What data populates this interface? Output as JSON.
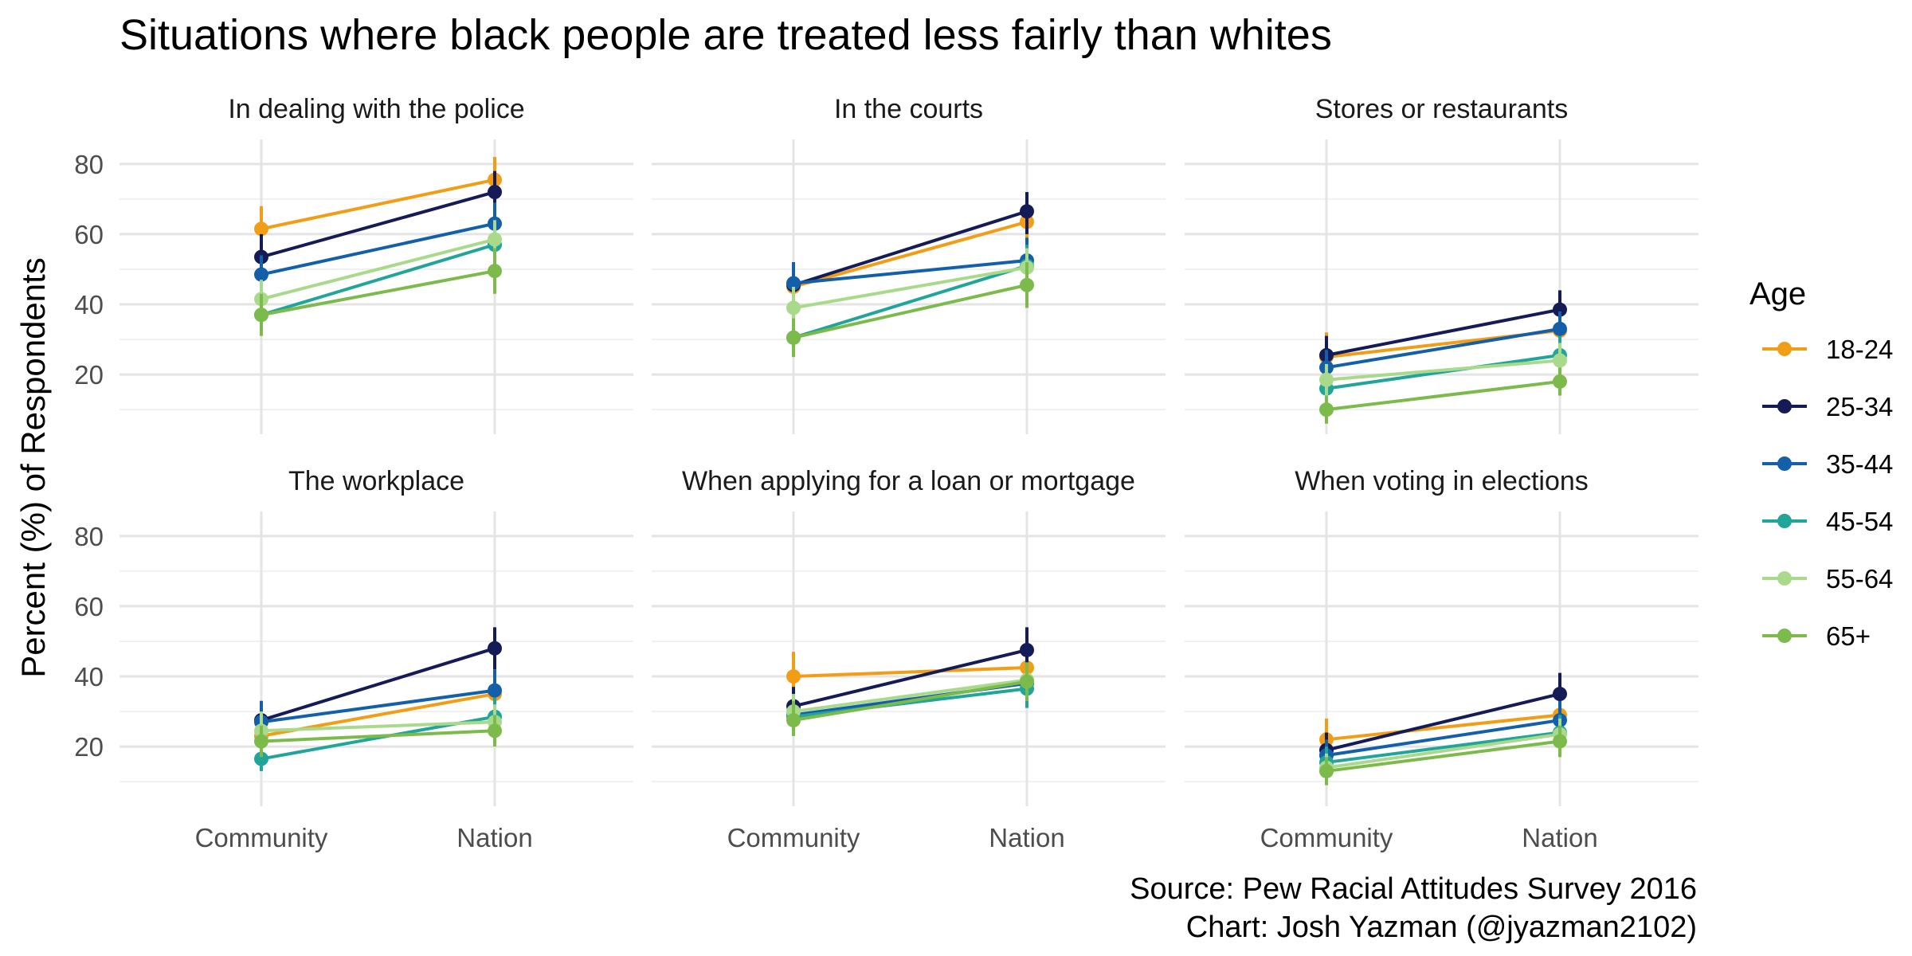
{
  "chart_data": {
    "type": "line",
    "title": "Situations where black people are treated less fairly than whites",
    "ylabel": "Percent (%) of Respondents",
    "xlabel": "",
    "categories": [
      "Community",
      "Nation"
    ],
    "ylim": [
      3,
      87
    ],
    "y_ticks": [
      20,
      40,
      60,
      80
    ],
    "grid": true,
    "legend": {
      "title": "Age",
      "position": "right",
      "items": [
        "18-24",
        "25-34",
        "35-44",
        "45-54",
        "55-64",
        "65+"
      ],
      "colors": [
        "#F29D16",
        "#141B57",
        "#145FAA",
        "#21A59A",
        "#A9D98B",
        "#7CBB4B"
      ]
    },
    "caption": [
      "Source: Pew Racial Attitudes Survey 2016",
      "Chart: Josh Yazman (@jyazman2102)"
    ],
    "panels": [
      {
        "title": "In dealing with the police",
        "series": [
          {
            "name": "18-24",
            "values": [
              61.5,
              75.5
            ],
            "ci": [
              [
                55,
                68
              ],
              [
                69,
                82
              ]
            ]
          },
          {
            "name": "25-34",
            "values": [
              53.5,
              72
            ],
            "ci": [
              [
                48,
                60
              ],
              [
                66,
                78
              ]
            ]
          },
          {
            "name": "35-44",
            "values": [
              48.5,
              63
            ],
            "ci": [
              [
                43,
                54
              ],
              [
                57,
                69
              ]
            ]
          },
          {
            "name": "45-54",
            "values": [
              37,
              57
            ],
            "ci": [
              [
                32,
                42
              ],
              [
                51,
                63
              ]
            ]
          },
          {
            "name": "55-64",
            "values": [
              41.5,
              58.5
            ],
            "ci": [
              [
                36,
                47
              ],
              [
                53,
                64
              ]
            ]
          },
          {
            "name": "65+",
            "values": [
              37,
              49.5
            ],
            "ci": [
              [
                31,
                43
              ],
              [
                43,
                56
              ]
            ]
          }
        ]
      },
      {
        "title": "In the courts",
        "series": [
          {
            "name": "18-24",
            "values": [
              45,
              63.5
            ],
            "ci": [
              [
                38,
                52
              ],
              [
                57,
                70
              ]
            ]
          },
          {
            "name": "25-34",
            "values": [
              45.5,
              66.5
            ],
            "ci": [
              [
                39,
                52
              ],
              [
                60,
                72
              ]
            ]
          },
          {
            "name": "35-44",
            "values": [
              46,
              52.5
            ],
            "ci": [
              [
                40,
                52
              ],
              [
                46,
                59
              ]
            ]
          },
          {
            "name": "45-54",
            "values": [
              30.5,
              51
            ],
            "ci": [
              [
                25,
                36
              ],
              [
                45,
                57
              ]
            ]
          },
          {
            "name": "55-64",
            "values": [
              39,
              50.5
            ],
            "ci": [
              [
                33,
                45
              ],
              [
                45,
                56
              ]
            ]
          },
          {
            "name": "65+",
            "values": [
              30.5,
              45.5
            ],
            "ci": [
              [
                25,
                36
              ],
              [
                39,
                52
              ]
            ]
          }
        ]
      },
      {
        "title": "Stores or restaurants",
        "series": [
          {
            "name": "18-24",
            "values": [
              25,
              32.5
            ],
            "ci": [
              [
                19,
                32
              ],
              [
                27,
                39
              ]
            ]
          },
          {
            "name": "25-34",
            "values": [
              25.5,
              38.5
            ],
            "ci": [
              [
                20,
                31
              ],
              [
                33,
                44
              ]
            ]
          },
          {
            "name": "35-44",
            "values": [
              22,
              33
            ],
            "ci": [
              [
                17,
                27
              ],
              [
                28,
                38
              ]
            ]
          },
          {
            "name": "45-54",
            "values": [
              16,
              25.5
            ],
            "ci": [
              [
                12,
                20
              ],
              [
                20,
                31
              ]
            ]
          },
          {
            "name": "55-64",
            "values": [
              18.5,
              24
            ],
            "ci": [
              [
                14,
                23
              ],
              [
                19,
                29
              ]
            ]
          },
          {
            "name": "65+",
            "values": [
              10,
              18
            ],
            "ci": [
              [
                6,
                14
              ],
              [
                14,
                22
              ]
            ]
          }
        ]
      },
      {
        "title": "The workplace",
        "series": [
          {
            "name": "18-24",
            "values": [
              23,
              35
            ],
            "ci": [
              [
                17,
                29
              ],
              [
                29,
                41
              ]
            ]
          },
          {
            "name": "25-34",
            "values": [
              27.5,
              48
            ],
            "ci": [
              [
                22,
                33
              ],
              [
                42,
                54
              ]
            ]
          },
          {
            "name": "35-44",
            "values": [
              27,
              36
            ],
            "ci": [
              [
                21,
                33
              ],
              [
                30,
                42
              ]
            ]
          },
          {
            "name": "45-54",
            "values": [
              16.5,
              28.5
            ],
            "ci": [
              [
                13,
                21
              ],
              [
                23,
                34
              ]
            ]
          },
          {
            "name": "55-64",
            "values": [
              24.5,
              27
            ],
            "ci": [
              [
                19,
                30
              ],
              [
                22,
                32
              ]
            ]
          },
          {
            "name": "65+",
            "values": [
              21.5,
              24.5
            ],
            "ci": [
              [
                17,
                26
              ],
              [
                20,
                29
              ]
            ]
          }
        ]
      },
      {
        "title": "When applying for a loan or mortgage",
        "series": [
          {
            "name": "18-24",
            "values": [
              40,
              42.5
            ],
            "ci": [
              [
                33,
                47
              ],
              [
                36,
                49
              ]
            ]
          },
          {
            "name": "25-34",
            "values": [
              31.5,
              47.5
            ],
            "ci": [
              [
                26,
                37
              ],
              [
                41,
                54
              ]
            ]
          },
          {
            "name": "35-44",
            "values": [
              29,
              38
            ],
            "ci": [
              [
                24,
                34
              ],
              [
                33,
                43
              ]
            ]
          },
          {
            "name": "45-54",
            "values": [
              28.5,
              36.5
            ],
            "ci": [
              [
                24,
                33
              ],
              [
                31,
                42
              ]
            ]
          },
          {
            "name": "55-64",
            "values": [
              30,
              39
            ],
            "ci": [
              [
                25,
                35
              ],
              [
                34,
                44
              ]
            ]
          },
          {
            "name": "65+",
            "values": [
              27.5,
              38.5
            ],
            "ci": [
              [
                23,
                33
              ],
              [
                33,
                44
              ]
            ]
          }
        ]
      },
      {
        "title": "When voting in elections",
        "series": [
          {
            "name": "18-24",
            "values": [
              22,
              29
            ],
            "ci": [
              [
                16,
                28
              ],
              [
                23,
                35
              ]
            ]
          },
          {
            "name": "25-34",
            "values": [
              19,
              35
            ],
            "ci": [
              [
                14,
                24
              ],
              [
                29,
                41
              ]
            ]
          },
          {
            "name": "35-44",
            "values": [
              17.5,
              27.5
            ],
            "ci": [
              [
                13,
                22
              ],
              [
                22,
                33
              ]
            ]
          },
          {
            "name": "45-54",
            "values": [
              15.5,
              24
            ],
            "ci": [
              [
                12,
                20
              ],
              [
                19,
                29
              ]
            ]
          },
          {
            "name": "55-64",
            "values": [
              14,
              23.5
            ],
            "ci": [
              [
                10,
                18
              ],
              [
                19,
                28
              ]
            ]
          },
          {
            "name": "65+",
            "values": [
              13,
              21.5
            ],
            "ci": [
              [
                9,
                17
              ],
              [
                17,
                26
              ]
            ]
          }
        ]
      }
    ]
  }
}
